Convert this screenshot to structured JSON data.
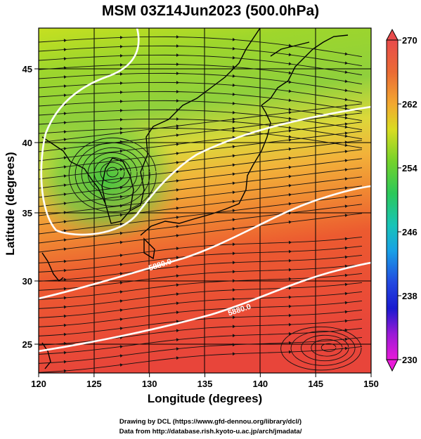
{
  "title": "MSM 03Z14Jun2023 (500.0hPa)",
  "xlabel": "Longitude (degrees)",
  "ylabel": "Latitude  (degrees)",
  "credits": [
    "Drawing by DCL (https://www.gfd-dennou.org/library/dcl/)",
    "Data from http://database.rish.kyoto-u.ac.jp/arch/jmadata/"
  ],
  "x_ticks": [
    "120",
    "125",
    "130",
    "135",
    "140",
    "145",
    "150"
  ],
  "y_ticks": [
    "25",
    "30",
    "35",
    "40",
    "45"
  ],
  "colorbar": {
    "ticks": [
      "270",
      "262",
      "254",
      "246",
      "238",
      "230"
    ],
    "range": [
      230,
      270
    ]
  },
  "contour_labels": [
    "5880.0",
    "5880.0"
  ],
  "map": {
    "lon_range": [
      120,
      150
    ],
    "lat_range": [
      22.5,
      47.8
    ],
    "grid_spacing_deg": 5
  }
}
